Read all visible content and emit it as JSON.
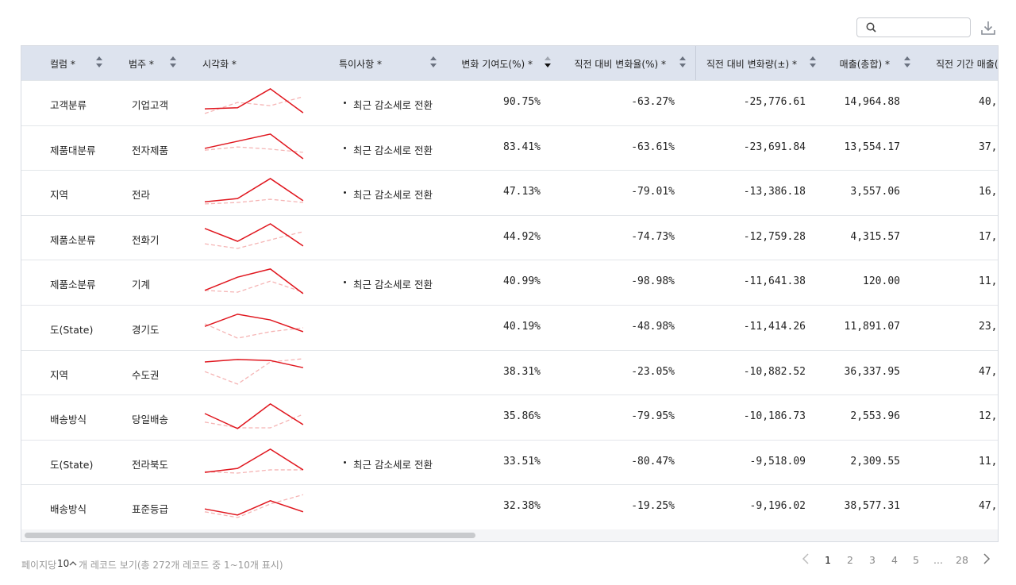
{
  "table": {
    "headers": [
      "컬럼 *",
      "범주 *",
      "시각화 *",
      "특이사항 *",
      "변화 기여도(%) *",
      "직전 대비 변화율(%) *",
      "직전 대비 변화량(±) *",
      "매출(총합) *",
      "직전 기간 매출(총"
    ],
    "rows": [
      {
        "column": "고객분류",
        "category": "기업고객",
        "spark": {
          "current": [
            33,
            36,
            89,
            22
          ],
          "previous": [
            20,
            51,
            42,
            67
          ]
        },
        "note": "최근 감소세로 전환",
        "contribution": "90.75%",
        "change_rate": "-63.27%",
        "change_amount": "-25,776.61",
        "sales": "14,964.88",
        "prev_sales": "40,"
      },
      {
        "column": "제품대분류",
        "category": "전자제품",
        "spark": {
          "current": [
            49,
            69,
            89,
            20
          ],
          "previous": [
            44,
            53,
            47,
            38
          ]
        },
        "note": "최근 감소세로 전환",
        "contribution": "83.41%",
        "change_rate": "-63.61%",
        "change_amount": "-23,691.84",
        "sales": "13,554.17",
        "prev_sales": "37,"
      },
      {
        "column": "지역",
        "category": "전라",
        "spark": {
          "current": [
            24,
            33,
            89,
            27
          ],
          "previous": [
            18,
            22,
            31,
            22
          ]
        },
        "note": "최근 감소세로 전환",
        "contribution": "47.13%",
        "change_rate": "-79.01%",
        "change_amount": "-13,386.18",
        "sales": "3,557.06",
        "prev_sales": "16,"
      },
      {
        "column": "제품소분류",
        "category": "전화기",
        "spark": {
          "current": [
            76,
            40,
            89,
            27
          ],
          "previous": [
            33,
            20,
            44,
            67
          ]
        },
        "contribution": "44.92%",
        "change_rate": "-74.73%",
        "change_amount": "-12,759.28",
        "sales": "4,315.57",
        "prev_sales": "17,"
      },
      {
        "column": "제품소분류",
        "category": "기계",
        "spark": {
          "current": [
            27,
            64,
            87,
            18
          ],
          "previous": [
            27,
            22,
            53,
            22
          ]
        },
        "note": "최근 감소세로 전환",
        "contribution": "40.99%",
        "change_rate": "-98.98%",
        "change_amount": "-11,641.38",
        "sales": "120.00",
        "prev_sales": "11,"
      },
      {
        "column": "도(State)",
        "category": "경기도",
        "spark": {
          "current": [
            53,
            87,
            71,
            38
          ],
          "previous": [
            60,
            20,
            38,
            49
          ]
        },
        "contribution": "40.19%",
        "change_rate": "-48.98%",
        "change_amount": "-11,414.26",
        "sales": "11,891.07",
        "prev_sales": "23,"
      },
      {
        "column": "지역",
        "category": "수도권",
        "spark": {
          "current": [
            80,
            87,
            84,
            64
          ],
          "previous": [
            53,
            18,
            80,
            89
          ]
        },
        "contribution": "38.31%",
        "change_rate": "-23.05%",
        "change_amount": "-10,882.52",
        "sales": "36,337.95",
        "prev_sales": "47,"
      },
      {
        "column": "배송방식",
        "category": "당일배송",
        "spark": {
          "current": [
            60,
            18,
            87,
            29
          ],
          "previous": [
            36,
            20,
            20,
            58
          ]
        },
        "contribution": "35.86%",
        "change_rate": "-79.95%",
        "change_amount": "-10,186.73",
        "sales": "2,553.96",
        "prev_sales": "12,"
      },
      {
        "column": "도(State)",
        "category": "전라북도",
        "spark": {
          "current": [
            22,
            33,
            87,
            29
          ],
          "previous": [
            24,
            20,
            29,
            29
          ]
        },
        "note": "최근 감소세로 전환",
        "contribution": "33.51%",
        "change_rate": "-80.47%",
        "change_amount": "-9,518.09",
        "sales": "2,309.55",
        "prev_sales": "11,"
      },
      {
        "column": "배송방식",
        "category": "표준등급",
        "spark": {
          "current": [
            44,
            27,
            67,
            36
          ],
          "previous": [
            36,
            20,
            58,
            84
          ]
        },
        "contribution": "32.38%",
        "change_rate": "-19.25%",
        "change_amount": "-9,196.02",
        "sales": "38,577.31",
        "prev_sales": "47,"
      }
    ]
  },
  "footer": {
    "per_page_label": "페이지당",
    "per_page": "10",
    "summary": "개 레코드 보기(총 272개 레코드 중 1~10개 표시)",
    "pages": [
      "1",
      "2",
      "3",
      "4",
      "5",
      "...",
      "28"
    ]
  }
}
